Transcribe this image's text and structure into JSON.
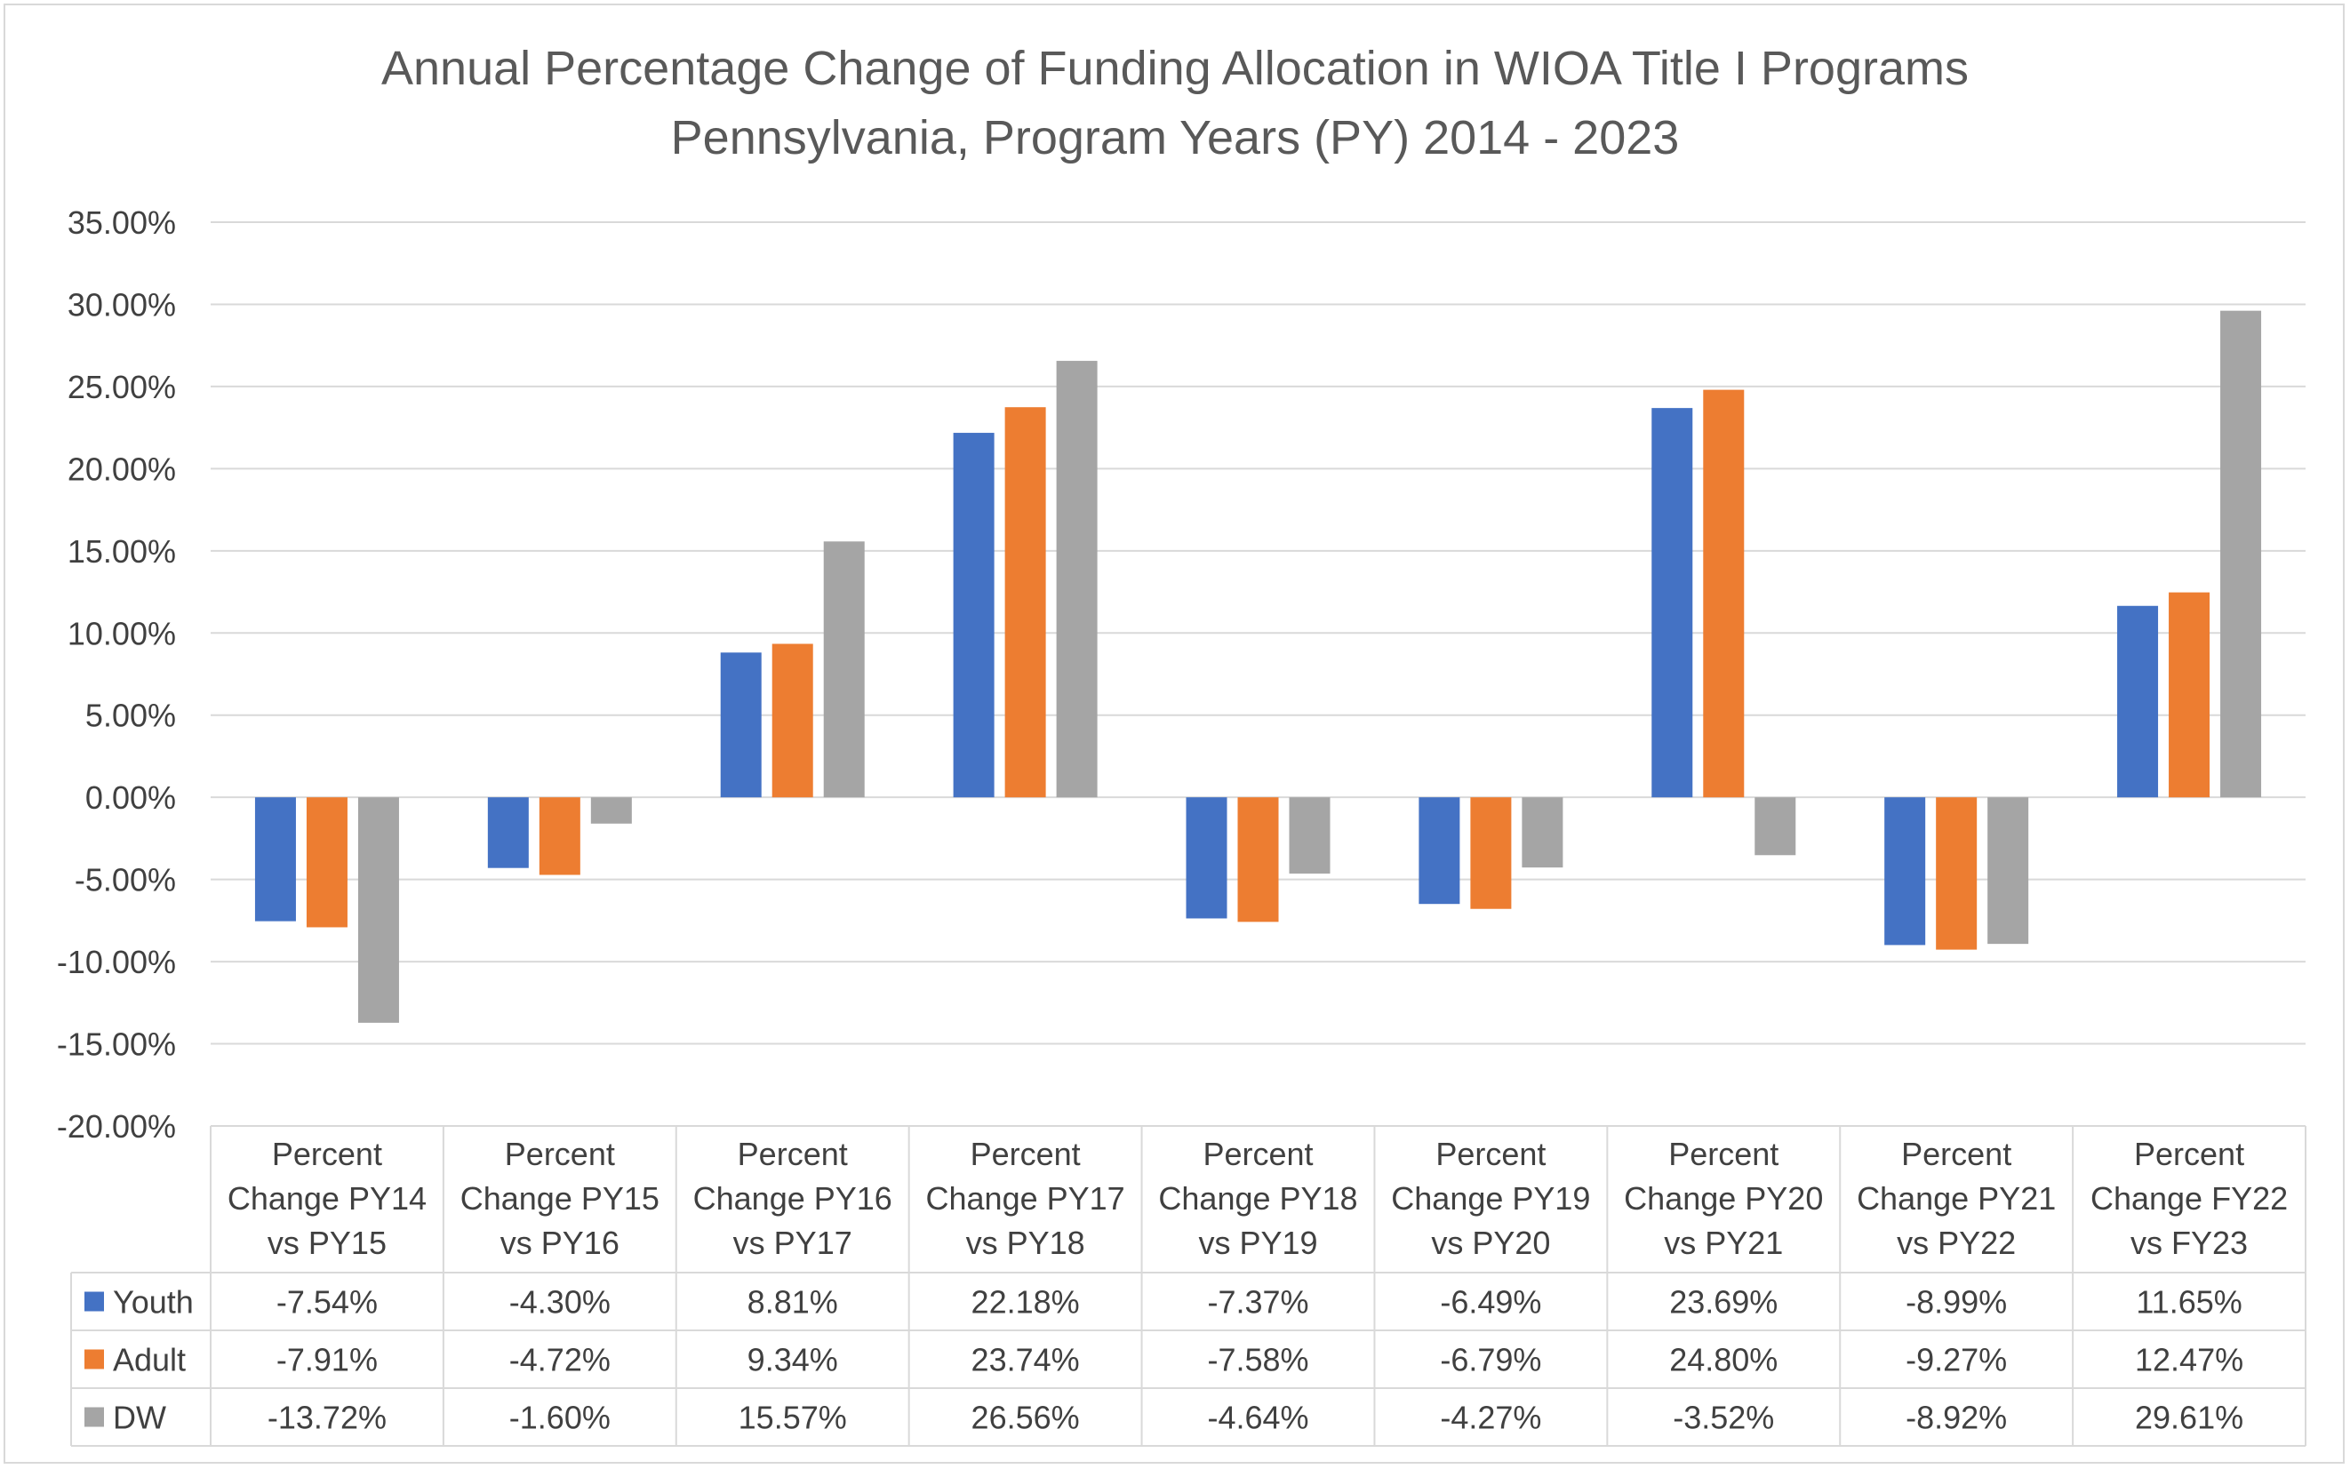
{
  "chart_data": {
    "type": "bar",
    "title": [
      "Annual Percentage Change of Funding Allocation in WIOA Title I Programs",
      "Pennsylvania, Program Years (PY) 2014 - 2023"
    ],
    "categories": [
      [
        "Percent",
        "Change PY14",
        "vs PY15"
      ],
      [
        "Percent",
        "Change PY15",
        "vs PY16"
      ],
      [
        "Percent",
        "Change PY16",
        "vs PY17"
      ],
      [
        "Percent",
        "Change PY17",
        "vs PY18"
      ],
      [
        "Percent",
        "Change PY18",
        "vs PY19"
      ],
      [
        "Percent",
        "Change PY19",
        "vs PY20"
      ],
      [
        "Percent",
        "Change PY20",
        "vs PY21"
      ],
      [
        "Percent",
        "Change PY21",
        "vs PY22"
      ],
      [
        "Percent",
        "Change FY22",
        "vs FY23"
      ]
    ],
    "series": [
      {
        "name": "Youth",
        "color": "#4472C4",
        "values": [
          -7.54,
          -4.3,
          8.81,
          22.18,
          -7.37,
          -6.49,
          23.69,
          -8.99,
          11.65
        ],
        "labels": [
          "-7.54%",
          "-4.30%",
          "8.81%",
          "22.18%",
          "-7.37%",
          "-6.49%",
          "23.69%",
          "-8.99%",
          "11.65%"
        ]
      },
      {
        "name": "Adult",
        "color": "#ED7D31",
        "values": [
          -7.91,
          -4.72,
          9.34,
          23.74,
          -7.58,
          -6.79,
          24.8,
          -9.27,
          12.47
        ],
        "labels": [
          "-7.91%",
          "-4.72%",
          "9.34%",
          "23.74%",
          "-7.58%",
          "-6.79%",
          "24.80%",
          "-9.27%",
          "12.47%"
        ]
      },
      {
        "name": "DW",
        "color": "#A5A5A5",
        "values": [
          -13.72,
          -1.6,
          15.57,
          26.56,
          -4.64,
          -4.27,
          -3.52,
          -8.92,
          29.61
        ],
        "labels": [
          "-13.72%",
          "-1.60%",
          "15.57%",
          "26.56%",
          "-4.64%",
          "-4.27%",
          "-3.52%",
          "-8.92%",
          "29.61%"
        ]
      }
    ],
    "yaxis": {
      "min": -20,
      "max": 35,
      "step": 5,
      "tick_labels": [
        "-20.00%",
        "-15.00%",
        "-10.00%",
        "-5.00%",
        "0.00%",
        "5.00%",
        "10.00%",
        "15.00%",
        "20.00%",
        "25.00%",
        "30.00%",
        "35.00%"
      ]
    },
    "grid": true,
    "legend": "data-table"
  }
}
